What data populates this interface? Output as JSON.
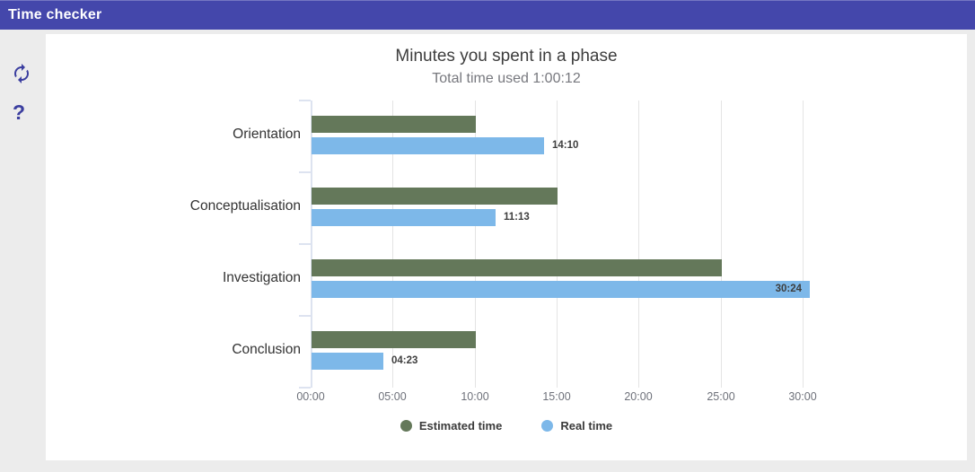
{
  "header": {
    "title": "Time checker",
    "background": "#4447ab"
  },
  "sidebar": {
    "refresh_icon": "refresh",
    "help_glyph": "?",
    "icon_color": "#3b3e9f"
  },
  "chart_data": {
    "type": "bar",
    "orientation": "horizontal",
    "title": "Minutes you spent in a phase",
    "subtitle": "Total time used 1:00:12",
    "categories": [
      "Orientation",
      "Conceptualisation",
      "Investigation",
      "Conclusion"
    ],
    "series": [
      {
        "name": "Estimated time",
        "color": "#64785a",
        "values_minutes": [
          10,
          15,
          25,
          10
        ],
        "labels": [
          "",
          "",
          "",
          ""
        ]
      },
      {
        "name": "Real time",
        "color": "#7db8e9",
        "values_minutes": [
          14.17,
          11.22,
          30.4,
          4.38
        ],
        "labels": [
          "14:10",
          "11:13",
          "30:24",
          "04:23"
        ]
      }
    ],
    "x_axis": {
      "tick_labels": [
        "00:00",
        "05:00",
        "10:00",
        "15:00",
        "20:00",
        "25:00",
        "30:00"
      ],
      "tick_minutes": [
        0,
        5,
        10,
        15,
        20,
        25,
        30
      ]
    },
    "xlim_minutes": [
      0,
      35
    ],
    "legend_position": "bottom",
    "grid": true
  }
}
